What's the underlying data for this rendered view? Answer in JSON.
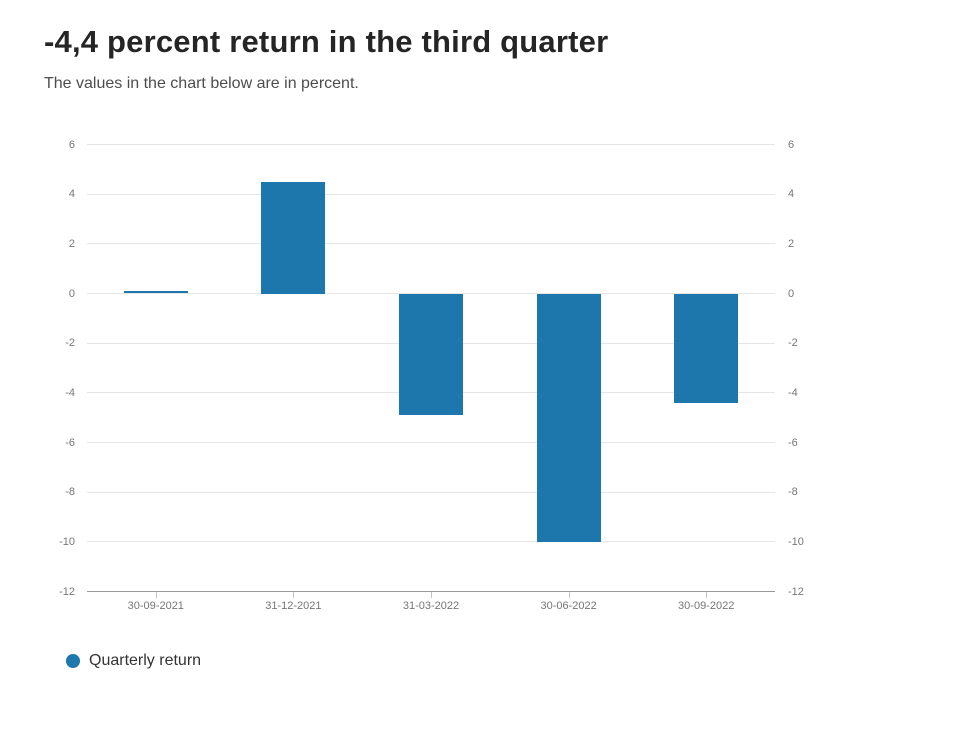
{
  "header": {
    "title": "-4,4 percent return in the third quarter",
    "subtitle": "The values in the chart below are in percent."
  },
  "legend": {
    "label": "Quarterly return"
  },
  "colors": {
    "bar": "#1d76ac",
    "grid": "#e6e6e6",
    "axis_line": "#9a9a9a",
    "tick_mark": "#c6c6c6",
    "tick_label": "#767676"
  },
  "chart_data": {
    "type": "bar",
    "title": "-4,4 percent return in the third quarter",
    "subtitle": "The values in the chart below are in percent.",
    "categories": [
      "30-09-2021",
      "31-12-2021",
      "31-03-2022",
      "30-06-2022",
      "30-09-2022"
    ],
    "series": [
      {
        "name": "Quarterly return",
        "values": [
          0.1,
          4.5,
          -4.9,
          -10.0,
          -4.4
        ]
      }
    ],
    "xlabel": "",
    "ylabel": "",
    "ylim": [
      -12,
      6
    ],
    "yticks": [
      6,
      4,
      2,
      0,
      -2,
      -4,
      -6,
      -8,
      -10,
      -12
    ],
    "grid": true,
    "dual_axis_labels": true,
    "legend_position": "bottom-left"
  }
}
